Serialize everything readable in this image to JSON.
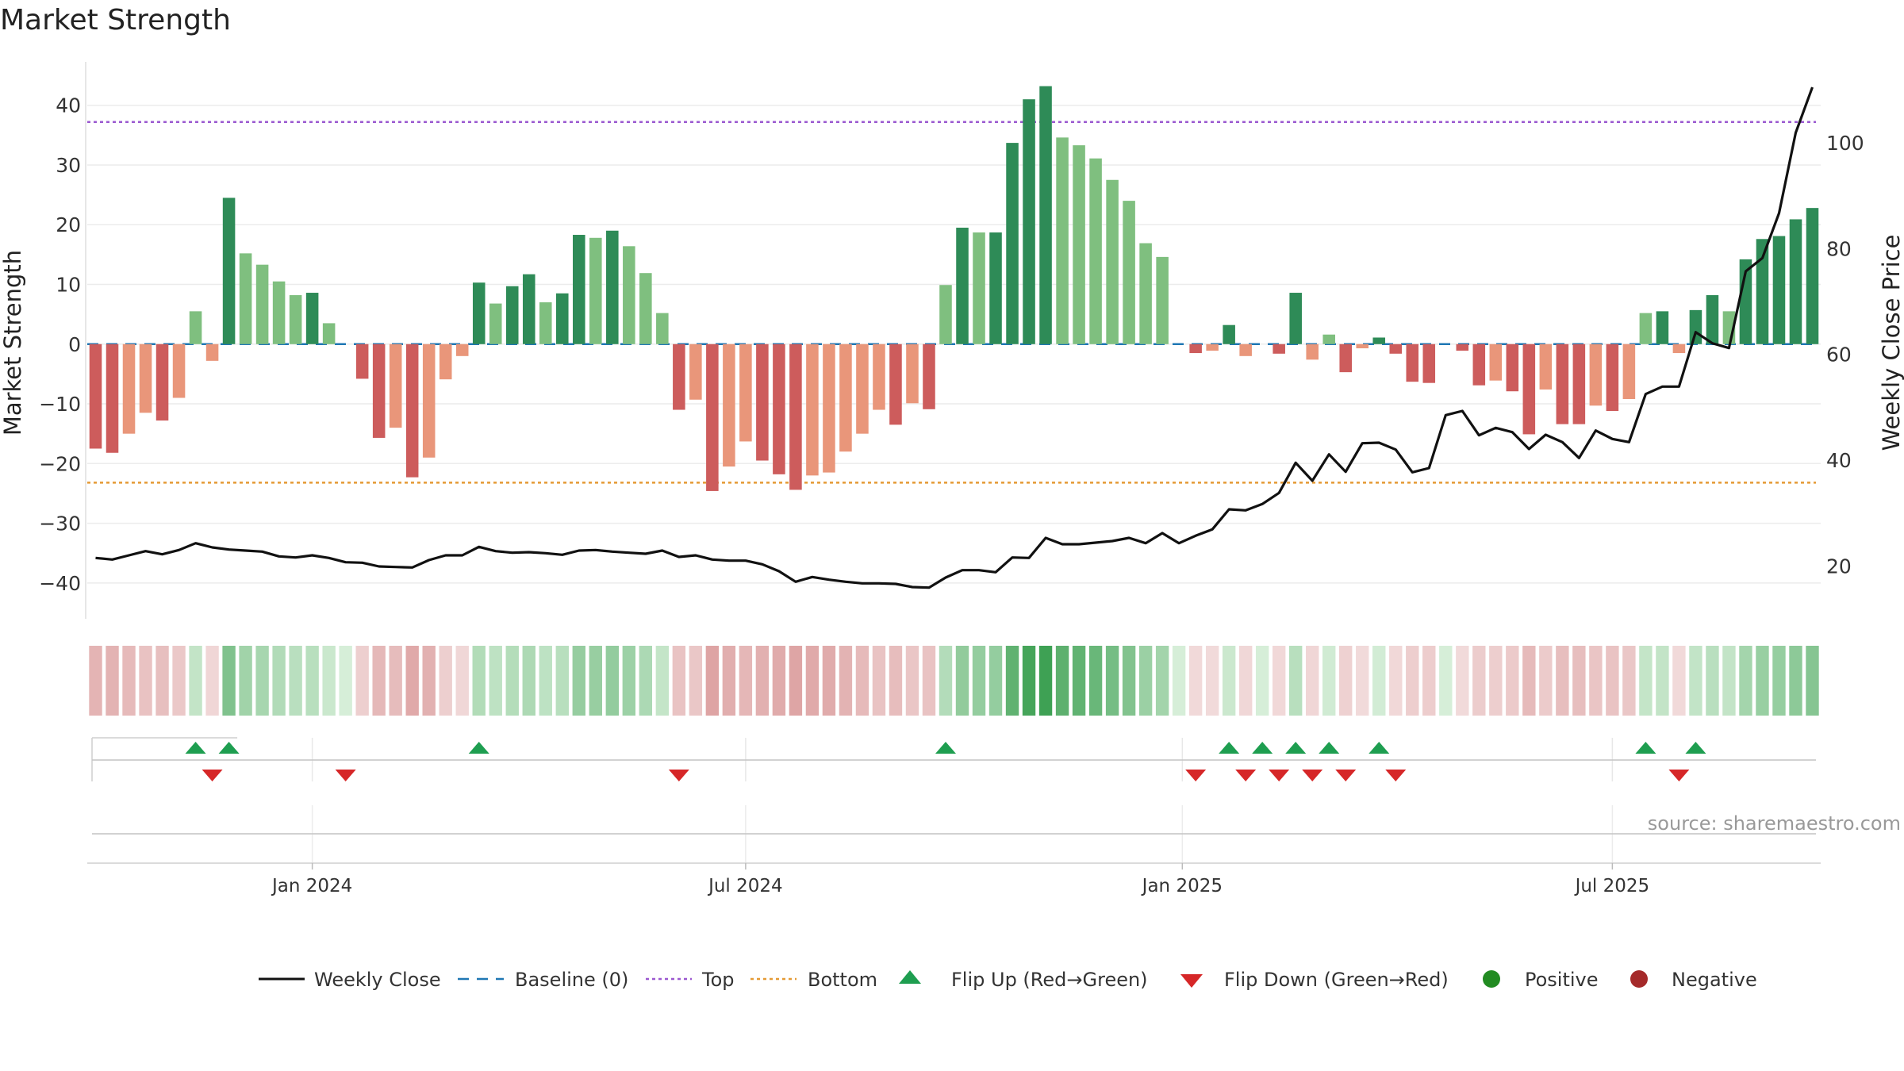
{
  "chart_data": {
    "type": "bar",
    "title": "Market Strength",
    "ylabel_left": "Market Strength",
    "ylabel_right": "Weekly Close Price",
    "left_ticks": [
      40,
      30,
      20,
      10,
      0,
      -10,
      -20,
      -30,
      -40
    ],
    "left_tick_labels": [
      "40",
      "30",
      "20",
      "10",
      "0",
      "−10",
      "−20",
      "−30",
      "−40"
    ],
    "left_ylim": [
      -46,
      47
    ],
    "right_ticks": [
      100,
      80,
      60,
      40,
      20
    ],
    "right_ylim": [
      10,
      115
    ],
    "x_ticks": [
      {
        "label": "Jan 2024",
        "week": 13.5
      },
      {
        "label": "Jul 2024",
        "week": 39.5
      },
      {
        "label": "Jan 2025",
        "week": 65.7
      },
      {
        "label": "Jul 2025",
        "week": 91.5
      }
    ],
    "reference_lines": {
      "top": 37.2,
      "bottom": -23.2,
      "baseline": 0
    },
    "series": [
      {
        "name": "Market Strength",
        "values": [
          -17.5,
          -18.2,
          -15,
          -11.5,
          -12.8,
          -9,
          5.5,
          -2.8,
          24.5,
          15.2,
          13.3,
          10.5,
          8.2,
          8.6,
          3.5,
          0,
          -5.8,
          -15.7,
          -14,
          -22.3,
          -19,
          -5.9,
          -2,
          10.3,
          6.8,
          9.7,
          11.7,
          7,
          8.5,
          18.3,
          17.8,
          19,
          16.4,
          11.9,
          5.2,
          -11,
          -9.3,
          -24.6,
          -20.5,
          -16.3,
          -19.5,
          -21.8,
          -24.4,
          -22,
          -21.5,
          -18,
          -15,
          -11,
          -13.5,
          -9.9,
          -10.9,
          9.9,
          19.5,
          18.7,
          18.7,
          33.7,
          41,
          43.2,
          34.6,
          33.3,
          31.1,
          27.5,
          24,
          16.9,
          14.6,
          0,
          -1.5,
          -1.1,
          3.2,
          -2,
          0,
          -1.6,
          8.6,
          -2.6,
          1.6,
          -4.7,
          -0.7,
          1.1,
          -1.6,
          -6.3,
          -6.5,
          0,
          -1.1,
          -6.9,
          -6.1,
          -7.9,
          -15.1,
          -7.6,
          -13.4,
          -13.4,
          -10.3,
          -11.2,
          -9.2,
          5.2,
          5.5,
          -1.5,
          5.7,
          8.2,
          5.5,
          14.2,
          17.6,
          18.1,
          20.9,
          22.8
        ]
      },
      {
        "name": "Weekly Close",
        "values": [
          21.5,
          21.2,
          22,
          22.8,
          22.2,
          23,
          24.3,
          23.5,
          23.1,
          22.9,
          22.7,
          21.8,
          21.6,
          22,
          21.5,
          20.7,
          20.6,
          19.9,
          19.8,
          19.7,
          21.1,
          22,
          22,
          23.6,
          22.8,
          22.5,
          22.6,
          22.4,
          22.1,
          22.9,
          23,
          22.7,
          22.5,
          22.3,
          22.9,
          21.7,
          22,
          21.2,
          21,
          21,
          20.3,
          19,
          17,
          17.9,
          17.4,
          17,
          16.7,
          16.7,
          16.6,
          16,
          15.9,
          17.8,
          19.2,
          19.2,
          18.8,
          21.6,
          21.5,
          25.3,
          24.1,
          24.1,
          24.4,
          24.7,
          25.3,
          24.3,
          26.2,
          24.3,
          25.7,
          26.9,
          30.7,
          30.5,
          31.7,
          33.8,
          39.5,
          36.1,
          41.1,
          37.8,
          43.2,
          43.3,
          42,
          37.7,
          38.5,
          48.5,
          49.3,
          44.7,
          46.1,
          45.3,
          42.1,
          44.8,
          43.4,
          40.4,
          45.6,
          44,
          43.4,
          52.5,
          53.9,
          53.9,
          64.2,
          62.1,
          61.2,
          75.7,
          78.2,
          86.7,
          101.9,
          110.5
        ]
      }
    ],
    "flip_up_weeks": [
      6,
      8,
      23,
      51,
      68,
      70,
      72,
      74,
      77,
      93,
      96
    ],
    "flip_down_weeks": [
      7,
      15,
      35,
      66,
      69,
      71,
      73,
      75,
      78,
      95
    ],
    "legend_placement": "bottom-center",
    "grid": true
  },
  "legend": {
    "items": [
      "Weekly Close",
      "Baseline (0)",
      "Top",
      "Bottom",
      "Flip Up (Red→Green)",
      "Flip Down (Green→Red)",
      "Positive",
      "Negative"
    ]
  },
  "source_text": "source: sharemaestro.com",
  "colors": {
    "strong_pos": "#2e8b57",
    "weak_pos": "#7fbf7f",
    "strong_neg": "#cd5c5c",
    "weak_neg": "#e9967a",
    "price_line": "#111111",
    "top_line": "#9b59d0",
    "bottom_line": "#e59a35",
    "baseline": "#1f77b4",
    "flip_up": "#1e9e50",
    "flip_down": "#d62728",
    "positive_dot": "#228b22",
    "negative_dot": "#a52a2a"
  }
}
